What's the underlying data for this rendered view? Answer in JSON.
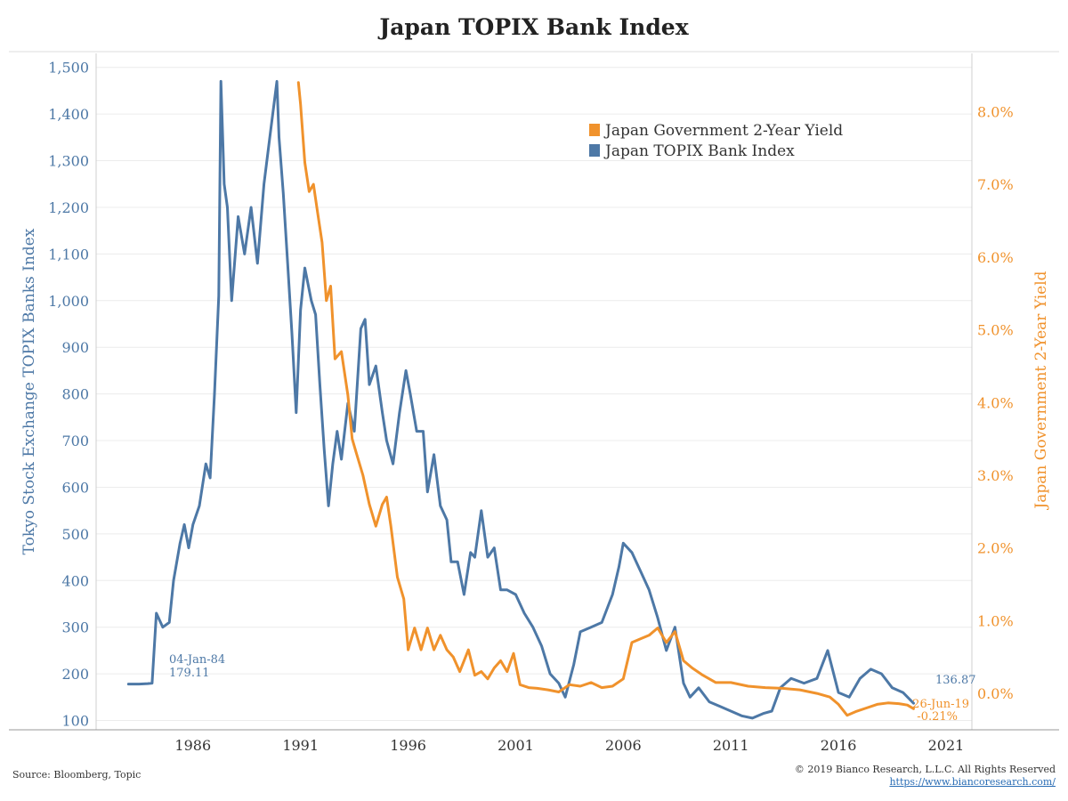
{
  "chart_data": {
    "type": "line",
    "title": "Japan TOPIX Bank Index",
    "y_left_label": "Tokyo Stock Exchange TOPIX Banks Index",
    "y_right_label": "Japan Government 2-Year Yield",
    "x_ticks": [
      "1986",
      "1991",
      "1996",
      "2001",
      "2006",
      "2011",
      "2016",
      "2021"
    ],
    "x_tick_values": [
      1986,
      1991,
      1996,
      2001,
      2006,
      2011,
      2016,
      2021
    ],
    "x_range": [
      1981.5,
      2022.2
    ],
    "y_left_ticks": [
      "100",
      "200",
      "300",
      "400",
      "500",
      "600",
      "700",
      "800",
      "900",
      "1,000",
      "1,100",
      "1,200",
      "1,300",
      "1,400",
      "1,500"
    ],
    "y_left_range": [
      80,
      1530
    ],
    "y_right_ticks": [
      "0.0%",
      "1.0%",
      "2.0%",
      "3.0%",
      "4.0%",
      "5.0%",
      "6.0%",
      "7.0%",
      "8.0%"
    ],
    "y_right_range": [
      -0.5,
      8.8
    ],
    "grid": true,
    "legend_position": "top-right",
    "colors": {
      "bank": "#4d78a6",
      "yield": "#f0922c"
    },
    "series": [
      {
        "name": "Japan Government 2-Year Yield",
        "axis": "right",
        "x": [
          1990.9,
          1991.0,
          1991.2,
          1991.4,
          1991.6,
          1991.8,
          1992.0,
          1992.2,
          1992.4,
          1992.6,
          1992.9,
          1993.2,
          1993.4,
          1993.6,
          1993.9,
          1994.2,
          1994.5,
          1994.8,
          1995.0,
          1995.2,
          1995.5,
          1995.8,
          1996.0,
          1996.3,
          1996.6,
          1996.9,
          1997.2,
          1997.5,
          1997.8,
          1998.1,
          1998.4,
          1998.8,
          1999.1,
          1999.4,
          1999.7,
          2000.0,
          2000.3,
          2000.6,
          2000.9,
          2001.2,
          2001.6,
          2002.0,
          2002.5,
          2003.0,
          2003.5,
          2004.0,
          2004.5,
          2005.0,
          2005.5,
          2006.0,
          2006.4,
          2006.8,
          2007.2,
          2007.6,
          2008.0,
          2008.4,
          2008.8,
          2009.2,
          2009.7,
          2010.3,
          2011.0,
          2011.8,
          2012.6,
          2013.4,
          2014.2,
          2015.0,
          2015.6,
          2016.0,
          2016.4,
          2016.8,
          2017.3,
          2017.8,
          2018.3,
          2018.8,
          2019.2,
          2019.49
        ],
        "values": [
          8.4,
          8.1,
          7.3,
          6.9,
          7.0,
          6.6,
          6.2,
          5.4,
          5.6,
          4.6,
          4.7,
          4.1,
          3.5,
          3.3,
          3.0,
          2.6,
          2.3,
          2.6,
          2.7,
          2.3,
          1.6,
          1.3,
          0.6,
          0.9,
          0.6,
          0.9,
          0.6,
          0.8,
          0.6,
          0.5,
          0.3,
          0.6,
          0.25,
          0.3,
          0.2,
          0.35,
          0.45,
          0.3,
          0.55,
          0.12,
          0.08,
          0.07,
          0.05,
          0.02,
          0.12,
          0.1,
          0.15,
          0.08,
          0.1,
          0.2,
          0.7,
          0.75,
          0.8,
          0.9,
          0.7,
          0.85,
          0.45,
          0.35,
          0.25,
          0.15,
          0.15,
          0.1,
          0.08,
          0.07,
          0.05,
          0.0,
          -0.05,
          -0.15,
          -0.3,
          -0.25,
          -0.2,
          -0.15,
          -0.13,
          -0.14,
          -0.16,
          -0.21
        ]
      },
      {
        "name": "Japan TOPIX Bank Index",
        "axis": "left",
        "x": [
          1983.0,
          1983.5,
          1983.9,
          1984.1,
          1984.3,
          1984.6,
          1984.9,
          1985.1,
          1985.4,
          1985.6,
          1985.8,
          1986.0,
          1986.3,
          1986.6,
          1986.8,
          1987.0,
          1987.2,
          1987.3,
          1987.45,
          1987.6,
          1987.8,
          1988.1,
          1988.4,
          1988.7,
          1989.0,
          1989.3,
          1989.6,
          1989.9,
          1990.0,
          1990.2,
          1990.4,
          1990.6,
          1990.8,
          1991.0,
          1991.2,
          1991.5,
          1991.7,
          1991.9,
          1992.1,
          1992.3,
          1992.5,
          1992.7,
          1992.9,
          1993.2,
          1993.5,
          1993.8,
          1994.0,
          1994.2,
          1994.5,
          1994.8,
          1995.0,
          1995.3,
          1995.6,
          1995.9,
          1996.1,
          1996.4,
          1996.7,
          1996.9,
          1997.2,
          1997.5,
          1997.8,
          1998.0,
          1998.3,
          1998.6,
          1998.9,
          1999.1,
          1999.4,
          1999.7,
          2000.0,
          2000.3,
          2000.6,
          2001.0,
          2001.4,
          2001.8,
          2002.2,
          2002.6,
          2003.0,
          2003.3,
          2003.7,
          2004.0,
          2004.5,
          2005.0,
          2005.5,
          2005.8,
          2006.0,
          2006.4,
          2006.8,
          2007.2,
          2007.6,
          2008.0,
          2008.4,
          2008.8,
          2009.1,
          2009.5,
          2010.0,
          2010.5,
          2011.0,
          2011.5,
          2012.0,
          2012.5,
          2012.9,
          2013.3,
          2013.8,
          2014.4,
          2015.0,
          2015.5,
          2016.0,
          2016.5,
          2017.0,
          2017.5,
          2018.0,
          2018.5,
          2019.0,
          2019.49
        ],
        "values": [
          178,
          178,
          179,
          180,
          330,
          300,
          310,
          400,
          480,
          520,
          470,
          520,
          560,
          650,
          620,
          800,
          1010,
          1470,
          1250,
          1200,
          1000,
          1180,
          1100,
          1200,
          1080,
          1250,
          1360,
          1470,
          1350,
          1230,
          1080,
          930,
          760,
          980,
          1070,
          1000,
          970,
          820,
          680,
          560,
          650,
          720,
          660,
          780,
          720,
          940,
          960,
          820,
          860,
          760,
          700,
          650,
          760,
          850,
          800,
          720,
          720,
          590,
          670,
          560,
          530,
          440,
          440,
          370,
          460,
          450,
          550,
          450,
          470,
          380,
          380,
          370,
          330,
          300,
          260,
          200,
          180,
          150,
          220,
          290,
          300,
          310,
          370,
          430,
          480,
          460,
          420,
          380,
          320,
          250,
          300,
          180,
          150,
          170,
          140,
          130,
          120,
          110,
          105,
          115,
          120,
          170,
          190,
          180,
          190,
          250,
          160,
          150,
          190,
          210,
          200,
          170,
          160,
          136.87
        ]
      }
    ],
    "annotations": {
      "start_date": "04-Jan-84",
      "start_value": "179.11",
      "end_bank_value": "136.87",
      "end_date": "26-Jun-19",
      "end_yield_value": "-0.21%"
    }
  },
  "footer": {
    "source": "Source: Bloomberg, Topic",
    "copyright": "© 2019 Bianco Research, L.L.C. All Rights Reserved",
    "url": "https://www.biancoresearch.com/"
  }
}
